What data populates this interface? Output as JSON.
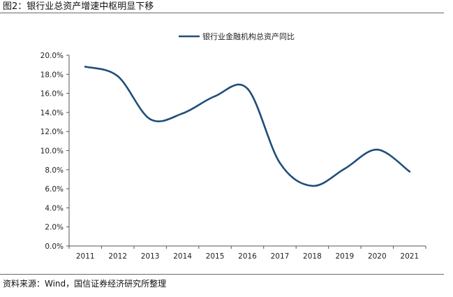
{
  "header": {
    "figure_title": "图2：银行业总资产增速中枢明显下移"
  },
  "footer": {
    "source": "资料来源：Wind，国信证券经济研究所整理"
  },
  "colors": {
    "series": "#1f4e79",
    "axis": "#555555",
    "rule": "#6a6a6a"
  },
  "chart_data": {
    "type": "line",
    "title": "",
    "xlabel": "",
    "ylabel": "",
    "x": [
      "2011",
      "2012",
      "2013",
      "2014",
      "2015",
      "2016",
      "2017",
      "2018",
      "2019",
      "2020",
      "2021"
    ],
    "ylim": [
      0,
      20
    ],
    "y_tick_labels": [
      "0.0%",
      "2.0%",
      "4.0%",
      "6.0%",
      "8.0%",
      "10.0%",
      "12.0%",
      "14.0%",
      "16.0%",
      "18.0%",
      "20.0%"
    ],
    "grid": false,
    "legend_position": "top-center",
    "series": [
      {
        "name": "银行业金融机构总资产同比",
        "values": [
          18.8,
          17.8,
          13.3,
          13.9,
          15.7,
          16.5,
          8.7,
          6.3,
          8.1,
          10.1,
          7.8
        ]
      }
    ]
  }
}
